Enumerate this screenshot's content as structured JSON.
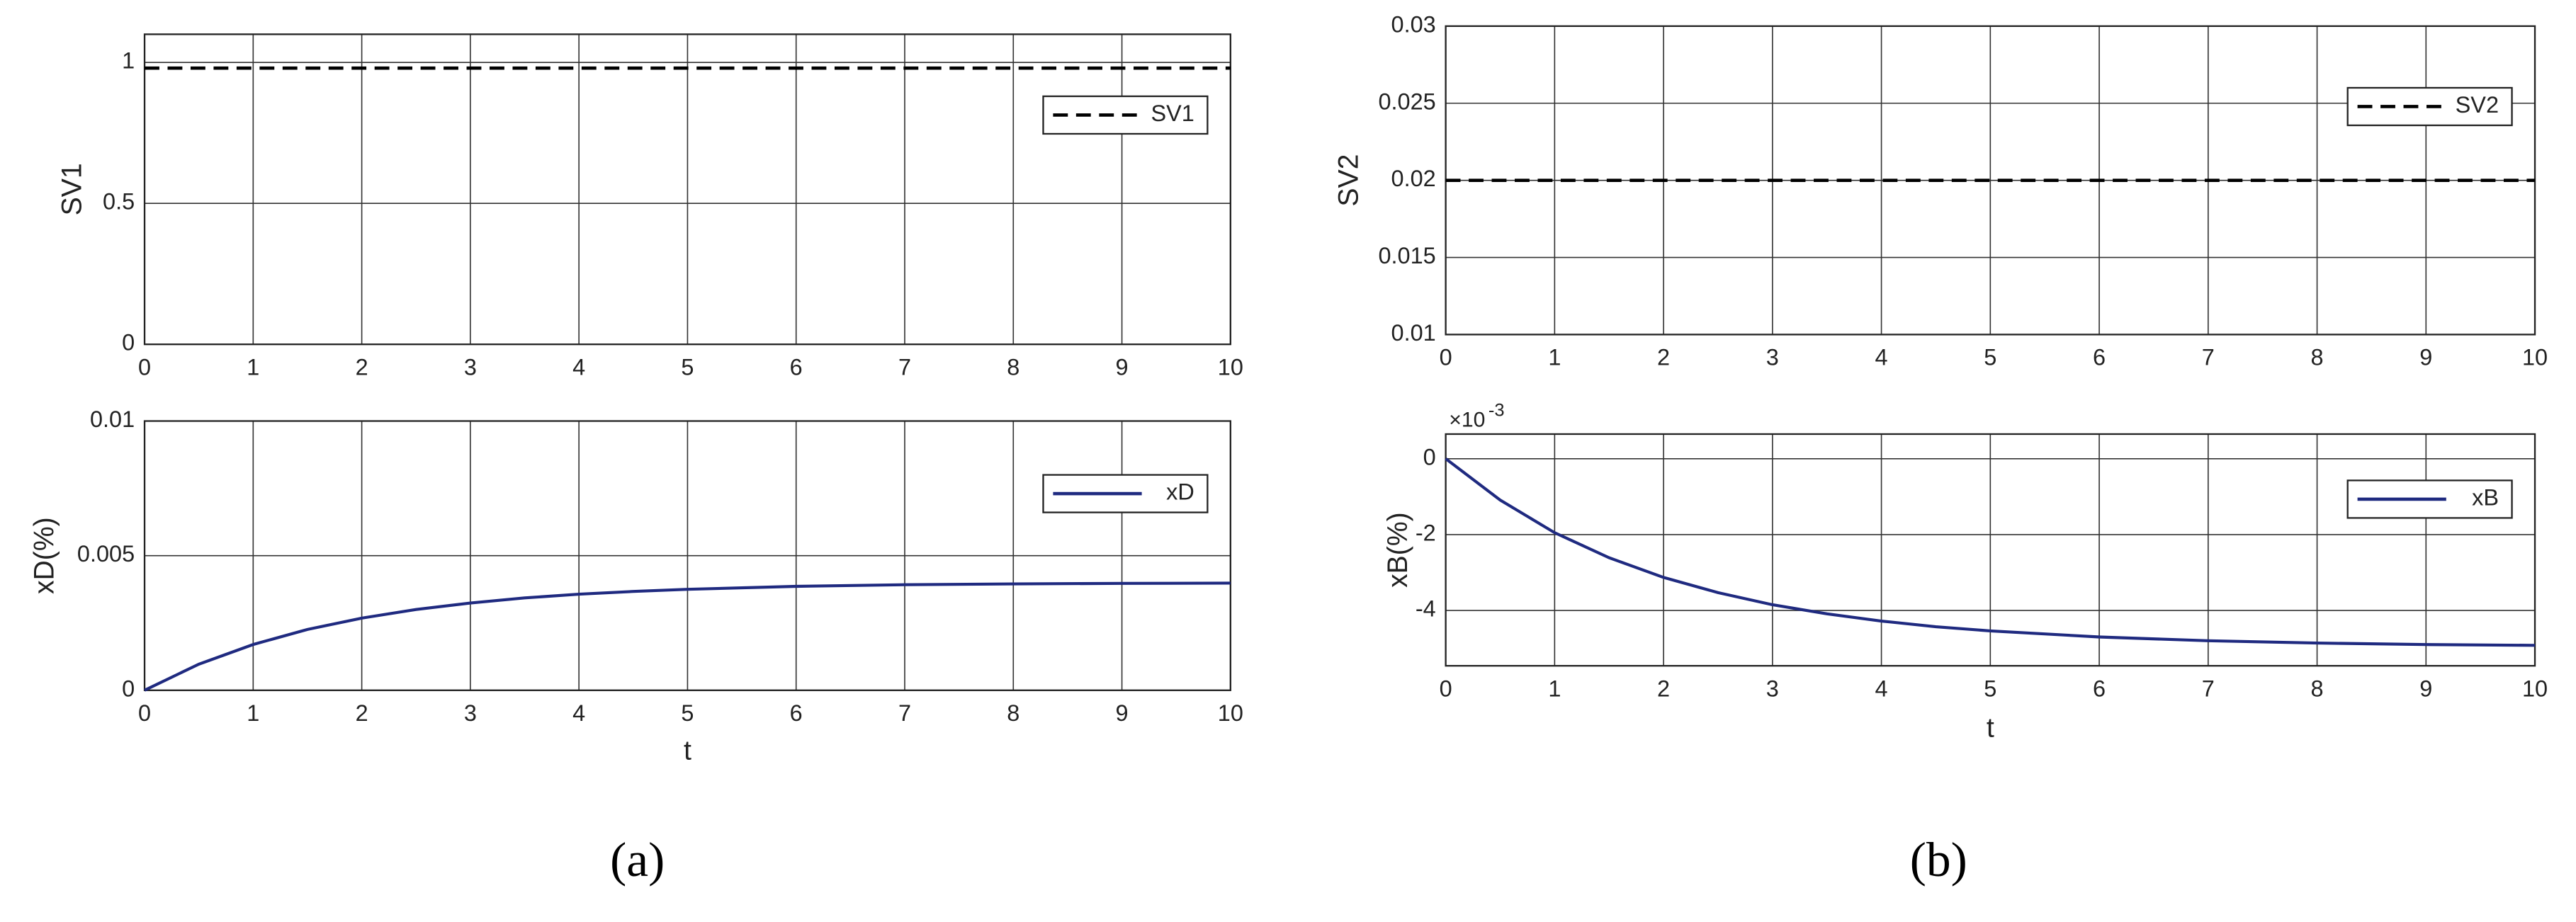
{
  "chart_data": [
    {
      "type": "line",
      "ylabel": "SV1",
      "xlim": [
        0,
        10
      ],
      "xticks": [
        0,
        1,
        2,
        3,
        4,
        5,
        6,
        7,
        8,
        9,
        10
      ],
      "ylim": [
        0,
        1.1
      ],
      "yticks": [
        0,
        0.5,
        1
      ],
      "grid": true,
      "legend": "northeast",
      "x": [
        0,
        10
      ],
      "series": [
        {
          "name": "SV1",
          "color": "#000000",
          "dash": true,
          "values": [
            0.98,
            0.98
          ]
        }
      ]
    },
    {
      "type": "line",
      "ylabel": "xD(%)",
      "xlabel": "t",
      "xlim": [
        0,
        10
      ],
      "xticks": [
        0,
        1,
        2,
        3,
        4,
        5,
        6,
        7,
        8,
        9,
        10
      ],
      "ylim": [
        0,
        0.01
      ],
      "yticks": [
        0,
        0.005,
        0.01
      ],
      "grid": true,
      "legend": "northeast",
      "x": [
        0,
        0.5,
        1,
        1.5,
        2,
        2.5,
        3,
        3.5,
        4,
        4.5,
        5,
        6,
        7,
        8,
        9,
        10
      ],
      "series": [
        {
          "name": "xD",
          "color": "#1f2a80",
          "dash": false,
          "values": [
            0,
            0.00097,
            0.0017,
            0.00226,
            0.00268,
            0.003,
            0.00324,
            0.00343,
            0.00357,
            0.00367,
            0.00375,
            0.00386,
            0.00392,
            0.00395,
            0.00397,
            0.00398
          ]
        }
      ]
    },
    {
      "type": "line",
      "ylabel": "SV2",
      "xlim": [
        0,
        10
      ],
      "xticks": [
        0,
        1,
        2,
        3,
        4,
        5,
        6,
        7,
        8,
        9,
        10
      ],
      "ylim": [
        0.01,
        0.03
      ],
      "yticks": [
        0.01,
        0.015,
        0.02,
        0.025,
        0.03
      ],
      "grid": true,
      "legend": "northeast",
      "x": [
        0,
        10
      ],
      "series": [
        {
          "name": "SV2",
          "color": "#000000",
          "dash": true,
          "values": [
            0.02,
            0.02
          ]
        }
      ]
    },
    {
      "type": "line",
      "ylabel": "xB(%)",
      "xlabel": "t",
      "y_multiplier": "×10",
      "y_exponent": "-3",
      "xlim": [
        0,
        10
      ],
      "xticks": [
        0,
        1,
        2,
        3,
        4,
        5,
        6,
        7,
        8,
        9,
        10
      ],
      "ylim": [
        -5.46,
        0.65
      ],
      "yticks": [
        -4,
        -2,
        0
      ],
      "grid": true,
      "legend": "northeast",
      "x": [
        0,
        0.5,
        1,
        1.5,
        2,
        2.5,
        3,
        3.5,
        4,
        4.5,
        5,
        6,
        7,
        8,
        9,
        10
      ],
      "series": [
        {
          "name": "xB",
          "color": "#1f2a80",
          "dash": false,
          "values": [
            0,
            -1.09,
            -1.95,
            -2.61,
            -3.13,
            -3.53,
            -3.85,
            -4.09,
            -4.28,
            -4.43,
            -4.54,
            -4.7,
            -4.8,
            -4.86,
            -4.9,
            -4.92
          ]
        }
      ]
    }
  ],
  "panel_labels": [
    "(a)",
    "(b)"
  ]
}
